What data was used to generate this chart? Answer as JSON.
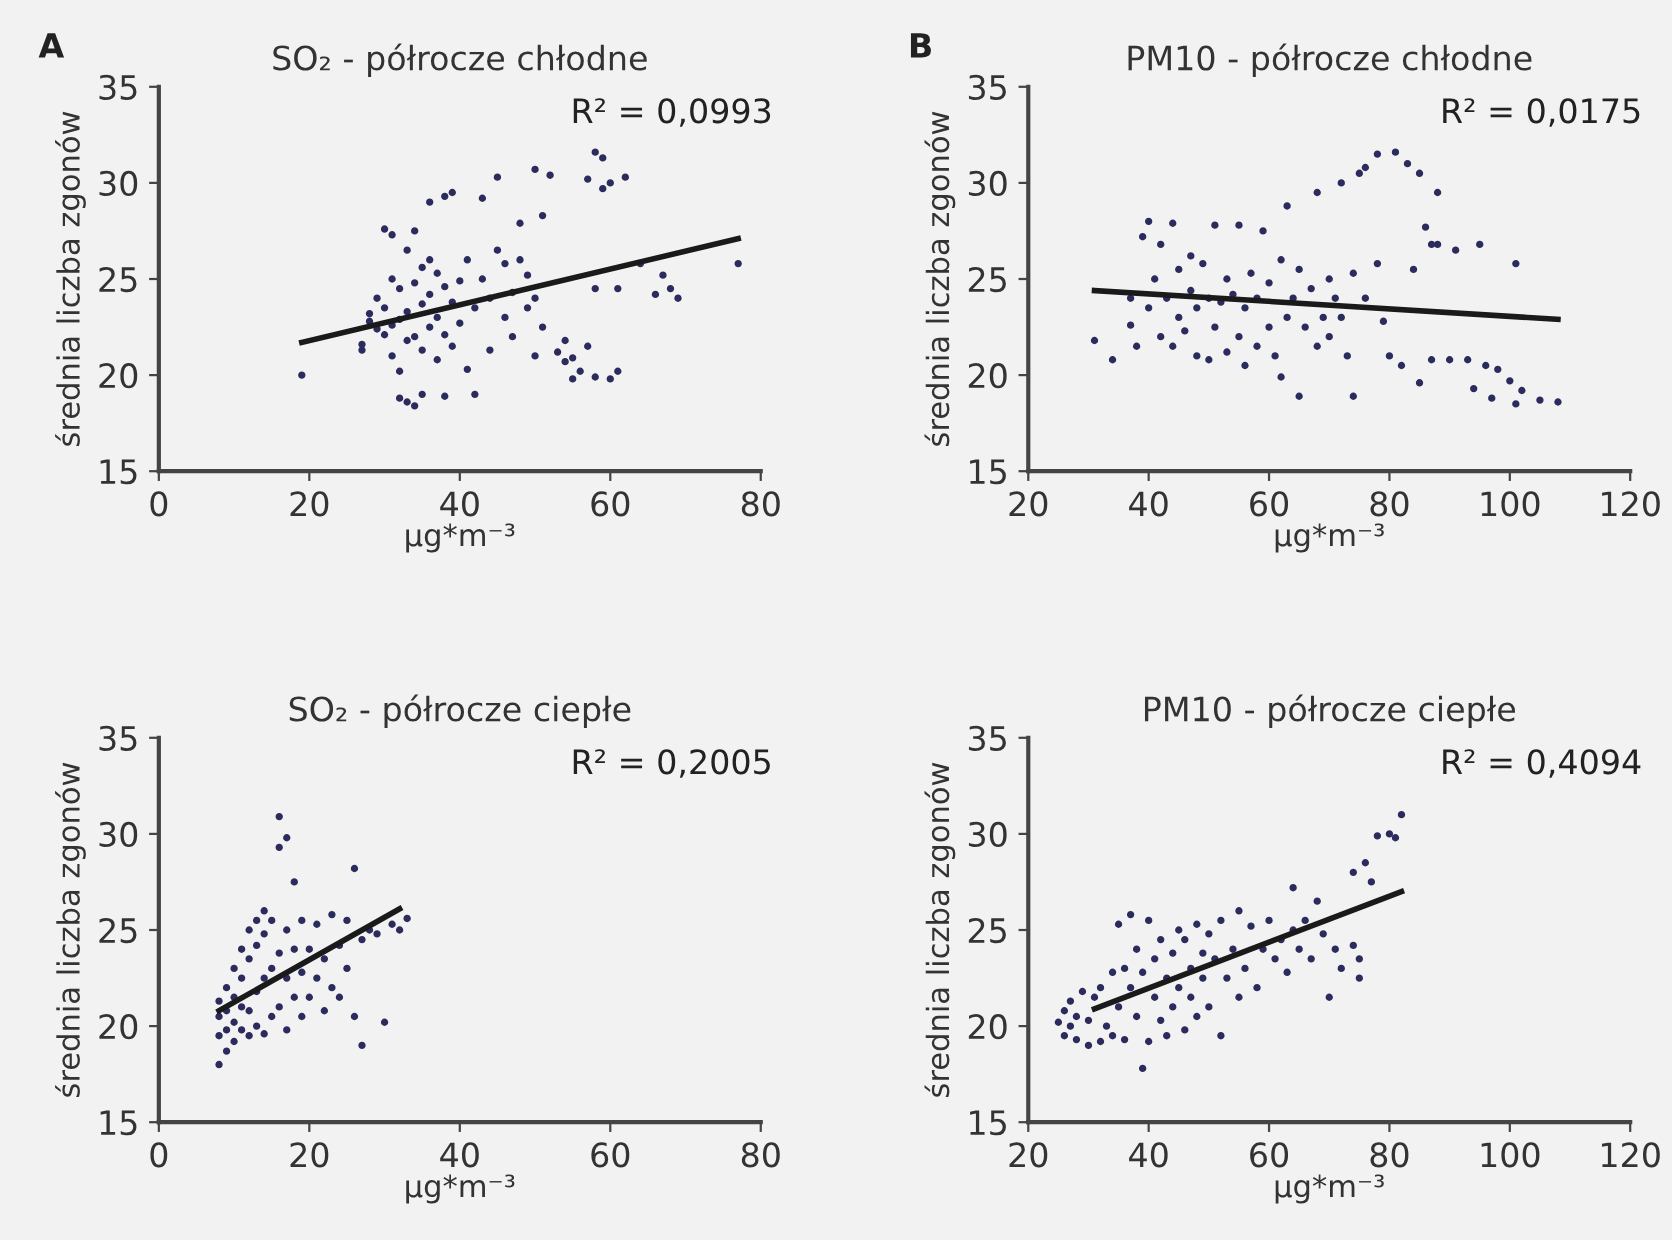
{
  "chart_data": [
    {
      "type": "scatter",
      "title": "SO₂ - półrocze chłodne",
      "xlabel": "µg*m⁻³",
      "ylabel": "średnia liczba zgonów",
      "annotations": [
        "A",
        "R² = 0,0993"
      ],
      "xlim": [
        0,
        80
      ],
      "xticks": [
        0,
        20,
        40,
        60,
        80
      ],
      "ylim": [
        15,
        35
      ],
      "yticks": [
        15,
        20,
        25,
        30,
        35
      ],
      "grid": false,
      "legend": false,
      "series": [
        {
          "marker": "circle",
          "color": "#2b2b5e",
          "x": [
            19,
            27,
            27,
            28,
            28,
            29,
            29,
            30,
            30,
            30,
            31,
            31,
            31,
            31,
            32,
            32,
            32,
            32,
            33,
            33,
            33,
            33,
            34,
            34,
            34,
            34,
            35,
            35,
            35,
            35,
            36,
            36,
            36,
            36,
            37,
            37,
            37,
            38,
            38,
            38,
            38,
            39,
            39,
            39,
            40,
            40,
            41,
            41,
            42,
            42,
            43,
            43,
            44,
            44,
            45,
            45,
            46,
            46,
            47,
            47,
            48,
            48,
            49,
            49,
            50,
            50,
            50,
            51,
            51,
            52,
            53,
            54,
            54,
            55,
            55,
            56,
            57,
            57,
            58,
            58,
            58,
            59,
            59,
            60,
            60,
            61,
            61,
            62,
            64,
            66,
            67,
            68,
            69,
            77
          ],
          "values": [
            20.0,
            21.3,
            21.6,
            22.8,
            23.2,
            22.4,
            24.0,
            22.1,
            23.5,
            27.6,
            21.0,
            22.6,
            25.0,
            27.3,
            18.8,
            20.2,
            22.9,
            24.5,
            18.6,
            21.8,
            23.3,
            26.5,
            18.4,
            22.0,
            24.8,
            27.5,
            19.0,
            21.3,
            23.7,
            25.6,
            22.5,
            24.2,
            26.0,
            29.0,
            20.8,
            23.0,
            25.3,
            18.9,
            22.1,
            24.6,
            29.3,
            21.5,
            23.8,
            29.5,
            22.7,
            24.9,
            20.3,
            26.0,
            19.0,
            23.5,
            25.0,
            29.2,
            21.3,
            24.0,
            26.5,
            30.3,
            23.0,
            25.8,
            24.3,
            22.0,
            26.0,
            27.9,
            23.5,
            25.2,
            21.0,
            24.0,
            30.7,
            22.5,
            28.3,
            30.4,
            21.2,
            20.7,
            21.8,
            19.8,
            20.9,
            20.2,
            21.5,
            30.2,
            19.9,
            24.5,
            31.6,
            29.7,
            31.3,
            30.0,
            19.8,
            24.5,
            20.2,
            30.3,
            25.8,
            24.2,
            25.2,
            24.5,
            24.0,
            25.8
          ]
        },
        {
          "type": "line",
          "marker": "none",
          "line_style": "solid",
          "color": "#1a1a1a",
          "x": [
            19,
            77
          ],
          "values": [
            21.7,
            27.1
          ]
        }
      ]
    },
    {
      "type": "scatter",
      "title": "PM10 - półrocze chłodne",
      "xlabel": "µg*m⁻³",
      "ylabel": "średnia liczba zgonów",
      "annotations": [
        "B",
        "R² = 0,0175"
      ],
      "xlim": [
        20,
        120
      ],
      "xticks": [
        20,
        40,
        60,
        80,
        100,
        120
      ],
      "ylim": [
        15,
        35
      ],
      "yticks": [
        15,
        20,
        25,
        30,
        35
      ],
      "grid": false,
      "legend": false,
      "series": [
        {
          "marker": "circle",
          "color": "#2b2b5e",
          "x": [
            31,
            34,
            37,
            37,
            38,
            39,
            40,
            40,
            41,
            42,
            42,
            43,
            44,
            44,
            45,
            45,
            46,
            47,
            47,
            48,
            48,
            49,
            50,
            50,
            51,
            51,
            52,
            53,
            53,
            54,
            55,
            55,
            56,
            56,
            57,
            58,
            58,
            59,
            60,
            60,
            61,
            62,
            62,
            63,
            63,
            64,
            65,
            65,
            66,
            67,
            68,
            68,
            69,
            70,
            70,
            71,
            72,
            72,
            73,
            74,
            74,
            75,
            76,
            76,
            78,
            78,
            79,
            80,
            81,
            82,
            83,
            84,
            85,
            85,
            86,
            87,
            87,
            88,
            88,
            90,
            91,
            93,
            94,
            95,
            96,
            97,
            98,
            100,
            101,
            101,
            102,
            105,
            108
          ],
          "values": [
            21.8,
            20.8,
            22.6,
            24.0,
            21.5,
            27.2,
            23.5,
            28.0,
            25.0,
            22.0,
            26.8,
            24.0,
            21.5,
            27.9,
            23.0,
            25.5,
            22.3,
            26.2,
            24.4,
            21.0,
            23.5,
            25.8,
            20.8,
            24.0,
            22.5,
            27.8,
            23.8,
            21.2,
            25.0,
            24.2,
            22.0,
            27.8,
            20.5,
            23.5,
            25.3,
            21.5,
            24.0,
            27.5,
            22.5,
            24.8,
            21.0,
            26.0,
            19.9,
            23.0,
            28.8,
            24.0,
            25.5,
            18.9,
            22.5,
            24.5,
            21.5,
            29.5,
            23.0,
            22.0,
            25.0,
            24.0,
            23.0,
            30.0,
            21.0,
            25.3,
            18.9,
            30.5,
            24.0,
            30.8,
            31.5,
            25.8,
            22.8,
            21.0,
            31.6,
            20.5,
            31.0,
            25.5,
            19.6,
            30.5,
            27.7,
            26.8,
            20.8,
            29.5,
            26.8,
            20.8,
            26.5,
            20.8,
            19.3,
            26.8,
            20.5,
            18.8,
            20.3,
            19.7,
            18.5,
            25.8,
            19.2,
            18.7,
            18.6
          ]
        },
        {
          "type": "line",
          "marker": "none",
          "line_style": "solid",
          "color": "#1a1a1a",
          "x": [
            31,
            108
          ],
          "values": [
            24.4,
            22.9
          ]
        }
      ]
    },
    {
      "type": "scatter",
      "title": "SO₂ - półrocze ciepłe",
      "xlabel": "µg*m⁻³",
      "ylabel": "średnia liczba zgonów",
      "annotations": [
        "R² = 0,2005"
      ],
      "xlim": [
        0,
        80
      ],
      "xticks": [
        0,
        20,
        40,
        60,
        80
      ],
      "ylim": [
        15,
        35
      ],
      "yticks": [
        15,
        20,
        25,
        30,
        35
      ],
      "grid": false,
      "legend": false,
      "series": [
        {
          "marker": "circle",
          "color": "#2b2b5e",
          "x": [
            8,
            8,
            8,
            8,
            9,
            9,
            9,
            9,
            10,
            10,
            10,
            10,
            11,
            11,
            11,
            11,
            12,
            12,
            12,
            12,
            13,
            13,
            13,
            13,
            14,
            14,
            14,
            14,
            15,
            15,
            15,
            16,
            16,
            16,
            16,
            17,
            17,
            17,
            17,
            18,
            18,
            18,
            19,
            19,
            19,
            20,
            20,
            21,
            21,
            22,
            22,
            23,
            23,
            24,
            24,
            25,
            25,
            26,
            26,
            27,
            27,
            28,
            29,
            30,
            31,
            32,
            33
          ],
          "values": [
            18.0,
            19.5,
            20.5,
            21.3,
            18.7,
            19.8,
            20.8,
            22.0,
            19.2,
            20.2,
            21.5,
            23.0,
            19.8,
            21.0,
            22.5,
            24.0,
            19.5,
            20.8,
            23.5,
            25.0,
            20.0,
            21.8,
            24.2,
            25.5,
            19.6,
            22.5,
            24.8,
            26.0,
            20.5,
            23.0,
            25.5,
            21.0,
            23.8,
            29.3,
            30.9,
            19.8,
            22.5,
            25.0,
            29.8,
            21.5,
            24.0,
            27.5,
            20.5,
            22.8,
            25.5,
            21.5,
            24.0,
            22.5,
            25.3,
            20.8,
            23.5,
            22.0,
            25.8,
            21.5,
            24.2,
            23.0,
            25.5,
            20.5,
            28.2,
            19.0,
            24.5,
            25.0,
            24.8,
            20.2,
            25.3,
            25.0,
            25.6
          ]
        },
        {
          "type": "line",
          "marker": "none",
          "line_style": "solid",
          "color": "#1a1a1a",
          "x": [
            8,
            32
          ],
          "values": [
            20.8,
            26.1
          ]
        }
      ]
    },
    {
      "type": "scatter",
      "title": "PM10 - półrocze ciepłe",
      "xlabel": "µg*m⁻³",
      "ylabel": "średnia liczba zgonów",
      "annotations": [
        "R² = 0,4094"
      ],
      "xlim": [
        20,
        120
      ],
      "xticks": [
        20,
        40,
        60,
        80,
        100,
        120
      ],
      "ylim": [
        15,
        35
      ],
      "yticks": [
        15,
        20,
        25,
        30,
        35
      ],
      "grid": false,
      "legend": false,
      "series": [
        {
          "marker": "circle",
          "color": "#2b2b5e",
          "x": [
            25,
            26,
            26,
            27,
            27,
            28,
            28,
            29,
            30,
            30,
            31,
            32,
            32,
            33,
            34,
            34,
            35,
            35,
            36,
            36,
            37,
            37,
            38,
            38,
            39,
            39,
            40,
            40,
            41,
            41,
            42,
            42,
            43,
            43,
            44,
            44,
            45,
            45,
            46,
            46,
            47,
            47,
            48,
            48,
            49,
            49,
            50,
            50,
            51,
            52,
            52,
            53,
            54,
            55,
            55,
            56,
            57,
            58,
            59,
            60,
            61,
            62,
            63,
            64,
            64,
            65,
            66,
            67,
            68,
            69,
            70,
            71,
            72,
            74,
            74,
            75,
            75,
            76,
            77,
            78,
            80,
            81,
            82
          ],
          "values": [
            20.2,
            19.5,
            20.8,
            20.0,
            21.3,
            19.3,
            20.5,
            21.8,
            19.0,
            20.3,
            21.5,
            19.2,
            22.0,
            20.0,
            22.8,
            19.5,
            25.3,
            21.0,
            23.0,
            19.3,
            25.8,
            22.0,
            20.5,
            24.0,
            17.8,
            22.8,
            19.2,
            25.5,
            21.5,
            23.5,
            20.3,
            24.5,
            22.5,
            19.5,
            23.8,
            21.0,
            25.0,
            22.0,
            19.8,
            24.5,
            23.0,
            21.5,
            25.3,
            20.5,
            23.8,
            22.5,
            24.8,
            21.0,
            23.5,
            19.5,
            25.5,
            22.5,
            24.0,
            21.5,
            26.0,
            23.0,
            25.2,
            22.0,
            24.0,
            25.5,
            23.5,
            24.5,
            22.8,
            27.2,
            25.0,
            24.0,
            25.5,
            23.5,
            26.5,
            24.8,
            21.5,
            24.0,
            23.0,
            28.0,
            24.2,
            22.5,
            23.5,
            28.5,
            27.5,
            29.9,
            30.0,
            29.8,
            31.0
          ]
        },
        {
          "type": "line",
          "marker": "none",
          "line_style": "solid",
          "color": "#1a1a1a",
          "x": [
            31,
            82
          ],
          "values": [
            20.9,
            27.0
          ]
        }
      ]
    }
  ]
}
